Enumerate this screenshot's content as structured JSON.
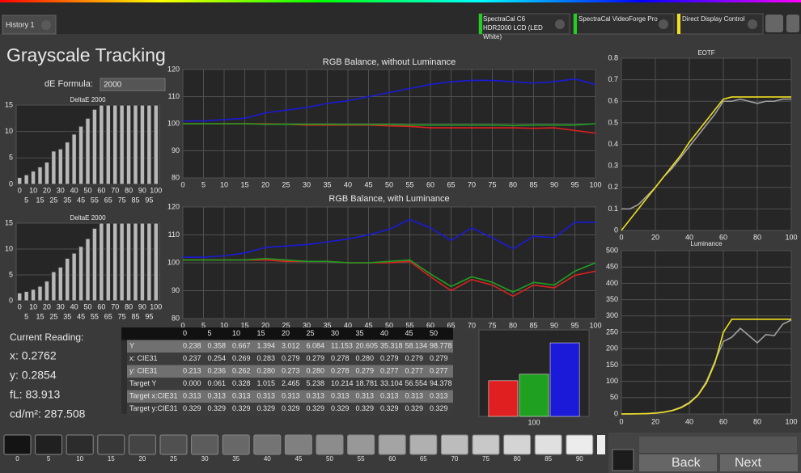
{
  "tab": "History 1",
  "sources": [
    "SpectraCal C6 HDR2000 LCD (LED White)",
    "SpectraCal VideoForge Pro",
    "Direct Display Control"
  ],
  "title": "Grayscale Tracking",
  "de_formula": {
    "label": "dE Formula:",
    "value": "2000"
  },
  "chart_data": [
    {
      "type": "bar",
      "title": "DeltaE 2000",
      "categories": [
        0,
        5,
        10,
        15,
        20,
        25,
        30,
        35,
        40,
        45,
        50,
        55,
        60,
        65,
        70,
        75,
        80,
        85,
        90,
        95,
        100
      ],
      "values": [
        1.3,
        1.8,
        2.5,
        3.3,
        4.2,
        6.3,
        6.7,
        8,
        9.5,
        11,
        12.5,
        14.2,
        15,
        15,
        15,
        15,
        15,
        15,
        15,
        15,
        15
      ],
      "color": "#b8b8b8",
      "ylim": [
        0,
        15
      ],
      "yticks": [
        0,
        5,
        10,
        15
      ],
      "grid": true
    },
    {
      "type": "bar",
      "title": "DeltaE 2000",
      "categories": [
        0,
        5,
        10,
        15,
        20,
        25,
        30,
        35,
        40,
        45,
        50,
        55,
        60,
        65,
        70,
        75,
        80,
        85,
        90,
        95,
        100
      ],
      "values": [
        1.5,
        1.8,
        2.2,
        2.8,
        3.8,
        5.6,
        6.5,
        8.2,
        9.2,
        10.5,
        12,
        14,
        15,
        15,
        15,
        15,
        15,
        15,
        15,
        15,
        15
      ],
      "color": "#b8b8b8",
      "ylim": [
        0,
        15
      ],
      "yticks": [
        0,
        5,
        10,
        15
      ],
      "grid": true
    },
    {
      "type": "line",
      "title": "RGB Balance, without Luminance",
      "x": [
        0,
        5,
        10,
        15,
        20,
        25,
        30,
        35,
        40,
        45,
        50,
        55,
        60,
        65,
        70,
        75,
        80,
        85,
        90,
        95,
        100
      ],
      "xlim": [
        0,
        100
      ],
      "xticks": [
        0,
        5,
        10,
        15,
        20,
        25,
        30,
        35,
        40,
        45,
        50,
        55,
        60,
        65,
        70,
        75,
        80,
        85,
        90,
        95,
        100
      ],
      "ylim": [
        80,
        120
      ],
      "yticks": [
        80,
        90,
        100,
        110,
        120
      ],
      "grid": true,
      "series": [
        {
          "name": "Red",
          "color": "#e02020",
          "values": [
            100,
            100,
            100,
            100,
            100,
            99.8,
            99.5,
            99.5,
            99.5,
            99.5,
            99.2,
            99,
            98.5,
            98.5,
            98.5,
            98.5,
            98.5,
            98.3,
            98.5,
            97.5,
            96.5
          ]
        },
        {
          "name": "Green",
          "color": "#20a020",
          "values": [
            100,
            100,
            100,
            100,
            99.8,
            99.8,
            99.8,
            99.8,
            99.7,
            99.7,
            99.7,
            99.5,
            99.5,
            99.5,
            99.5,
            99.5,
            99.3,
            99.5,
            99.5,
            99.5,
            100
          ]
        },
        {
          "name": "Blue",
          "color": "#1a1ad8",
          "values": [
            101,
            101,
            101.5,
            102,
            104,
            105,
            106,
            107.5,
            108.5,
            110,
            111.5,
            113,
            114.5,
            115.5,
            116,
            116,
            115.5,
            115,
            115.5,
            116.5,
            114.5
          ]
        }
      ]
    },
    {
      "type": "line",
      "title": "RGB Balance, with Luminance",
      "x": [
        0,
        5,
        10,
        15,
        20,
        25,
        30,
        35,
        40,
        45,
        50,
        55,
        60,
        65,
        70,
        75,
        80,
        85,
        90,
        95,
        100
      ],
      "xlim": [
        0,
        100
      ],
      "xticks": [
        0,
        5,
        10,
        15,
        20,
        25,
        30,
        35,
        40,
        45,
        50,
        55,
        60,
        65,
        70,
        75,
        80,
        85,
        90,
        95,
        100
      ],
      "ylim": [
        80,
        120
      ],
      "yticks": [
        80,
        90,
        100,
        110,
        120
      ],
      "grid": true,
      "series": [
        {
          "name": "Red",
          "color": "#e02020",
          "values": [
            101,
            101,
            101,
            101,
            101,
            100.5,
            100.5,
            100.5,
            100,
            100,
            100,
            100.5,
            95,
            90,
            94,
            92,
            88,
            92,
            91,
            95.5,
            97
          ]
        },
        {
          "name": "Green",
          "color": "#20a020",
          "values": [
            101,
            101,
            101,
            101,
            101.5,
            101,
            100.5,
            100.5,
            100,
            100,
            100.5,
            101,
            96,
            91.5,
            95,
            93,
            89.5,
            93,
            92,
            97,
            100
          ]
        },
        {
          "name": "Blue",
          "color": "#1a1ad8",
          "values": [
            102,
            102,
            102.5,
            103.5,
            105.5,
            106,
            106.5,
            107.5,
            108.5,
            110,
            112,
            115.5,
            112.5,
            108,
            112.5,
            109,
            105,
            109.5,
            109,
            114.5,
            114.5
          ]
        }
      ]
    },
    {
      "type": "line",
      "title": "EOTF",
      "x": [
        0,
        5,
        10,
        15,
        20,
        25,
        30,
        35,
        40,
        45,
        50,
        55,
        60,
        65,
        70,
        75,
        80,
        85,
        90,
        95,
        100
      ],
      "xlim": [
        0,
        100
      ],
      "xticks": [
        0,
        20,
        40,
        60,
        80,
        100
      ],
      "ylim": [
        0,
        0.8
      ],
      "yticks": [
        0,
        0.1,
        0.2,
        0.3,
        0.4,
        0.5,
        0.6,
        0.7,
        0.8
      ],
      "grid": true,
      "series": [
        {
          "name": "Measured",
          "color": "#a0a0a0",
          "values": [
            0.1,
            0.1,
            0.12,
            0.16,
            0.2,
            0.25,
            0.29,
            0.34,
            0.39,
            0.44,
            0.49,
            0.54,
            0.6,
            0.6,
            0.61,
            0.6,
            0.59,
            0.6,
            0.6,
            0.61,
            0.61
          ]
        },
        {
          "name": "Target",
          "color": "#f0e020",
          "values": [
            0,
            0.05,
            0.1,
            0.15,
            0.2,
            0.25,
            0.3,
            0.35,
            0.41,
            0.46,
            0.51,
            0.56,
            0.61,
            0.62,
            0.62,
            0.62,
            0.62,
            0.62,
            0.62,
            0.62,
            0.62
          ]
        }
      ]
    },
    {
      "type": "line",
      "title": "Luminance",
      "x": [
        0,
        5,
        10,
        15,
        20,
        25,
        30,
        35,
        40,
        45,
        50,
        55,
        60,
        65,
        70,
        75,
        80,
        85,
        90,
        95,
        100
      ],
      "xlim": [
        0,
        100
      ],
      "xticks": [
        0,
        20,
        40,
        60,
        80,
        100
      ],
      "ylim": [
        0,
        500
      ],
      "yticks": [
        0,
        50,
        100,
        150,
        200,
        250,
        300,
        350,
        400,
        450,
        500
      ],
      "grid": true,
      "series": [
        {
          "name": "Measured",
          "color": "#a0a0a0",
          "values": [
            0.238,
            0.358,
            0.667,
            1.394,
            3.012,
            6.084,
            11.153,
            20.605,
            35.318,
            58.134,
            98.778,
            160,
            222,
            235,
            262,
            240,
            218,
            243,
            240,
            275,
            287.5
          ]
        },
        {
          "name": "Target",
          "color": "#f0e020",
          "values": [
            0,
            0.061,
            0.328,
            1.015,
            2.465,
            5.238,
            10.214,
            18.781,
            33.104,
            56.554,
            94.378,
            155,
            250,
            290,
            290,
            290,
            290,
            290,
            290,
            290,
            290
          ]
        }
      ]
    },
    {
      "type": "bar",
      "categories": [
        100
      ],
      "ylim": [
        80,
        120
      ],
      "series": [
        {
          "name": "Red",
          "color": "#e02020",
          "values": [
            96.5
          ]
        },
        {
          "name": "Green",
          "color": "#20a020",
          "values": [
            99.5
          ]
        },
        {
          "name": "Blue",
          "color": "#1a1ad8",
          "values": [
            114
          ]
        }
      ]
    }
  ],
  "current_reading": {
    "label": "Current Reading:",
    "items": [
      "x: 0.2762",
      "y: 0.2854",
      "fL: 83.913",
      "cd/m²: 287.508"
    ]
  },
  "table": {
    "header": [
      0,
      5,
      10,
      15,
      20,
      25,
      30,
      35,
      40,
      45,
      50
    ],
    "rows": [
      {
        "label": "Y",
        "values": [
          "0.238",
          "0.358",
          "0.667",
          "1.394",
          "3.012",
          "6.084",
          "11.153",
          "20.605",
          "35.318",
          "58.134",
          "98.778"
        ]
      },
      {
        "label": "x: CIE31",
        "values": [
          "0.237",
          "0.254",
          "0.269",
          "0.283",
          "0.279",
          "0.279",
          "0.278",
          "0.280",
          "0.279",
          "0.279",
          "0.279"
        ]
      },
      {
        "label": "y: CIE31",
        "values": [
          "0.213",
          "0.236",
          "0.262",
          "0.280",
          "0.273",
          "0.280",
          "0.278",
          "0.279",
          "0.277",
          "0.277",
          "0.277"
        ]
      },
      {
        "label": "Target Y",
        "values": [
          "0.000",
          "0.061",
          "0.328",
          "1.015",
          "2.465",
          "5.238",
          "10.214",
          "18.781",
          "33.104",
          "56.554",
          "94.378"
        ]
      },
      {
        "label": "Target x:CIE31",
        "values": [
          "0.313",
          "0.313",
          "0.313",
          "0.313",
          "0.313",
          "0.313",
          "0.313",
          "0.313",
          "0.313",
          "0.313",
          "0.313"
        ]
      },
      {
        "label": "Target y:CIE31",
        "values": [
          "0.329",
          "0.329",
          "0.329",
          "0.329",
          "0.329",
          "0.329",
          "0.329",
          "0.329",
          "0.329",
          "0.329",
          "0.329"
        ]
      }
    ]
  },
  "swatches": [
    0,
    5,
    10,
    15,
    20,
    25,
    30,
    35,
    40,
    45,
    50,
    55,
    60,
    65,
    70,
    75,
    80,
    85,
    90
  ],
  "buttons": [
    "Back",
    "Next"
  ]
}
